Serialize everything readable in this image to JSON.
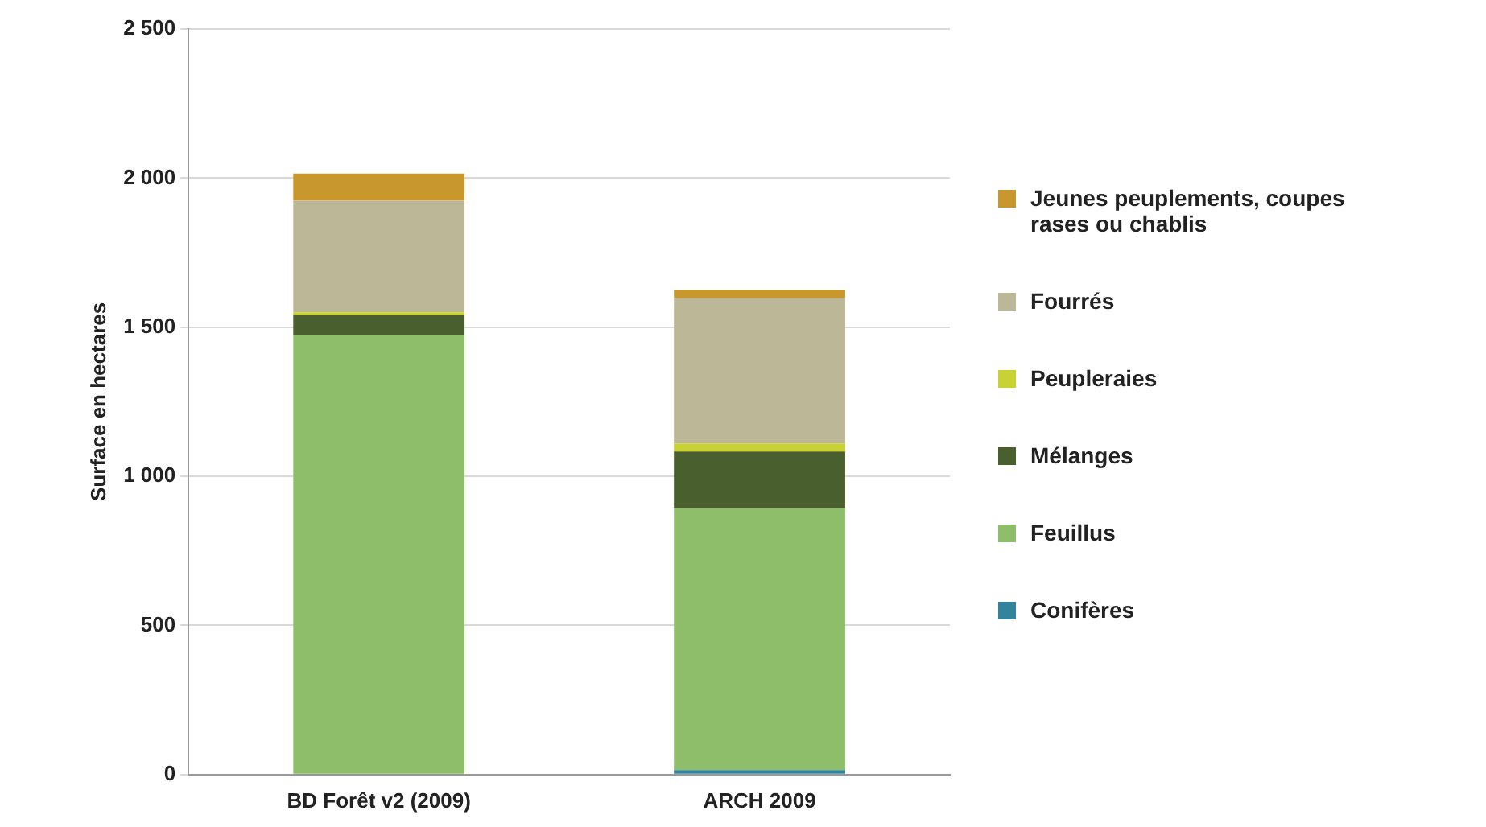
{
  "chart_data": {
    "type": "bar",
    "stacked": true,
    "ylabel": "Surface en hectares",
    "categories": [
      "BD Forêt v2 (2009)",
      "ARCH 2009"
    ],
    "series": [
      {
        "name": "Conifères",
        "color": "#31849b",
        "values": [
          0,
          15
        ]
      },
      {
        "name": "Feuillus",
        "color": "#8fbe6a",
        "values": [
          1475,
          878
        ]
      },
      {
        "name": "Mélanges",
        "color": "#4a5f2e",
        "values": [
          65,
          190
        ]
      },
      {
        "name": "Peupleraies",
        "color": "#c8d232",
        "values": [
          10,
          27
        ]
      },
      {
        "name": "Fourrés",
        "color": "#bcb796",
        "values": [
          375,
          487
        ]
      },
      {
        "name": "Jeunes peuplements, coupes rases ou chablis",
        "color": "#c8982e",
        "values": [
          90,
          29
        ]
      }
    ],
    "ylim": [
      0,
      2500
    ],
    "yticks": [
      0,
      500,
      {
        "value": 1000,
        "label": "1 000"
      },
      {
        "value": 1500,
        "label": "1 500"
      },
      {
        "value": 2000,
        "label": "2 000"
      },
      {
        "value": 2500,
        "label": "2 500"
      }
    ],
    "grid": "y",
    "legend": "right"
  }
}
